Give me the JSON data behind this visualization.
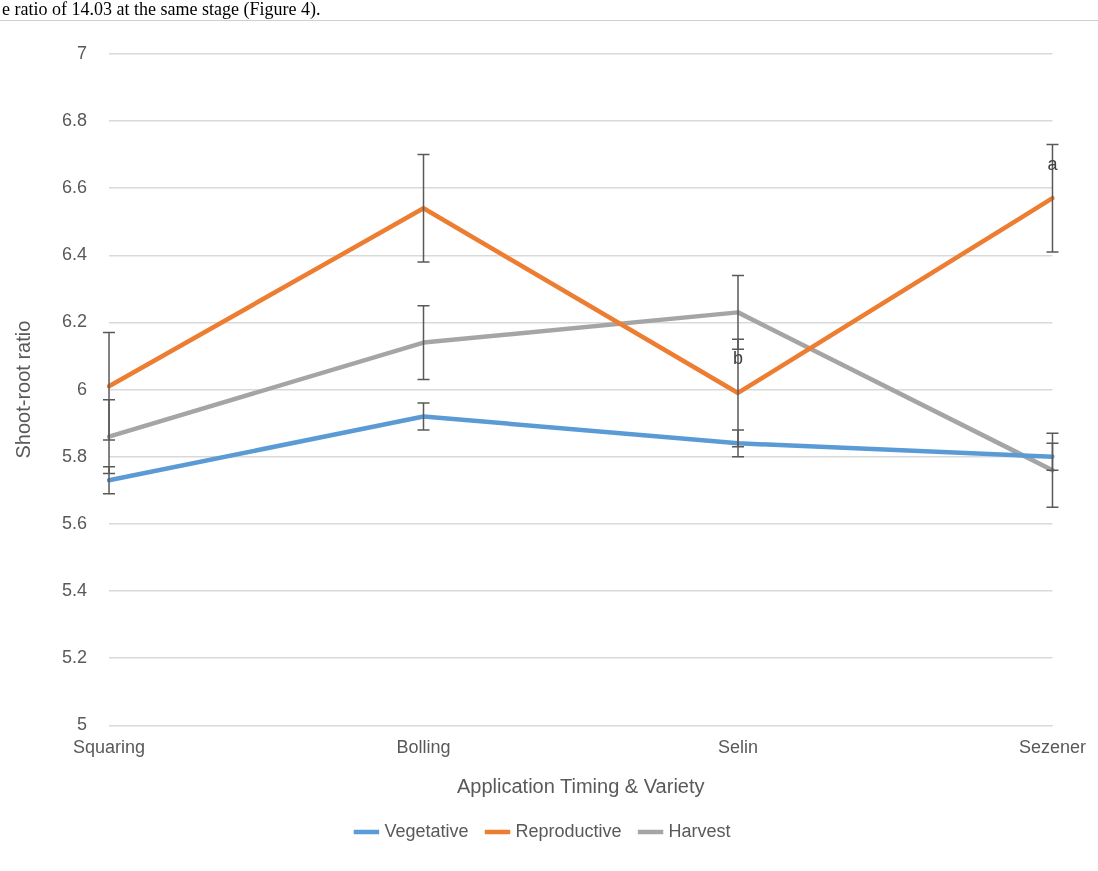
{
  "chart_data": {
    "type": "line",
    "xlabel": "Application Timing & Variety",
    "ylabel": "Shoot-root ratio",
    "categories": [
      "Squaring",
      "Bolling",
      "Selin",
      "Sezener"
    ],
    "series": [
      {
        "name": "Vegetative",
        "color": "#5b9bd5",
        "values": [
          5.73,
          5.92,
          5.84,
          5.8
        ],
        "errors": [
          0.04,
          0.04,
          0.04,
          0.04
        ]
      },
      {
        "name": "Reproductive",
        "color": "#ed7d31",
        "values": [
          6.01,
          6.54,
          5.99,
          6.57
        ],
        "errors": [
          0.16,
          0.16,
          0.16,
          0.16
        ]
      },
      {
        "name": "Harvest",
        "color": "#a5a5a5",
        "values": [
          5.86,
          6.14,
          6.23,
          5.76
        ],
        "errors": [
          0.11,
          0.11,
          0.11,
          0.11
        ]
      }
    ],
    "ylim": [
      5,
      7
    ],
    "yticks": [
      5,
      5.2,
      5.4,
      5.6,
      5.8,
      6,
      6.2,
      6.4,
      6.6,
      6.8,
      7
    ],
    "grid": "y",
    "legend": "bottom",
    "marker": "none",
    "line_style": "solid",
    "annotations": [
      "e ratio of 14.03 at the same stage (Figure 4).",
      {
        "text": "b",
        "x": "Selin",
        "y": 6.09
      },
      {
        "text": "a",
        "x": "Sezener",
        "y": 6.67
      }
    ]
  }
}
